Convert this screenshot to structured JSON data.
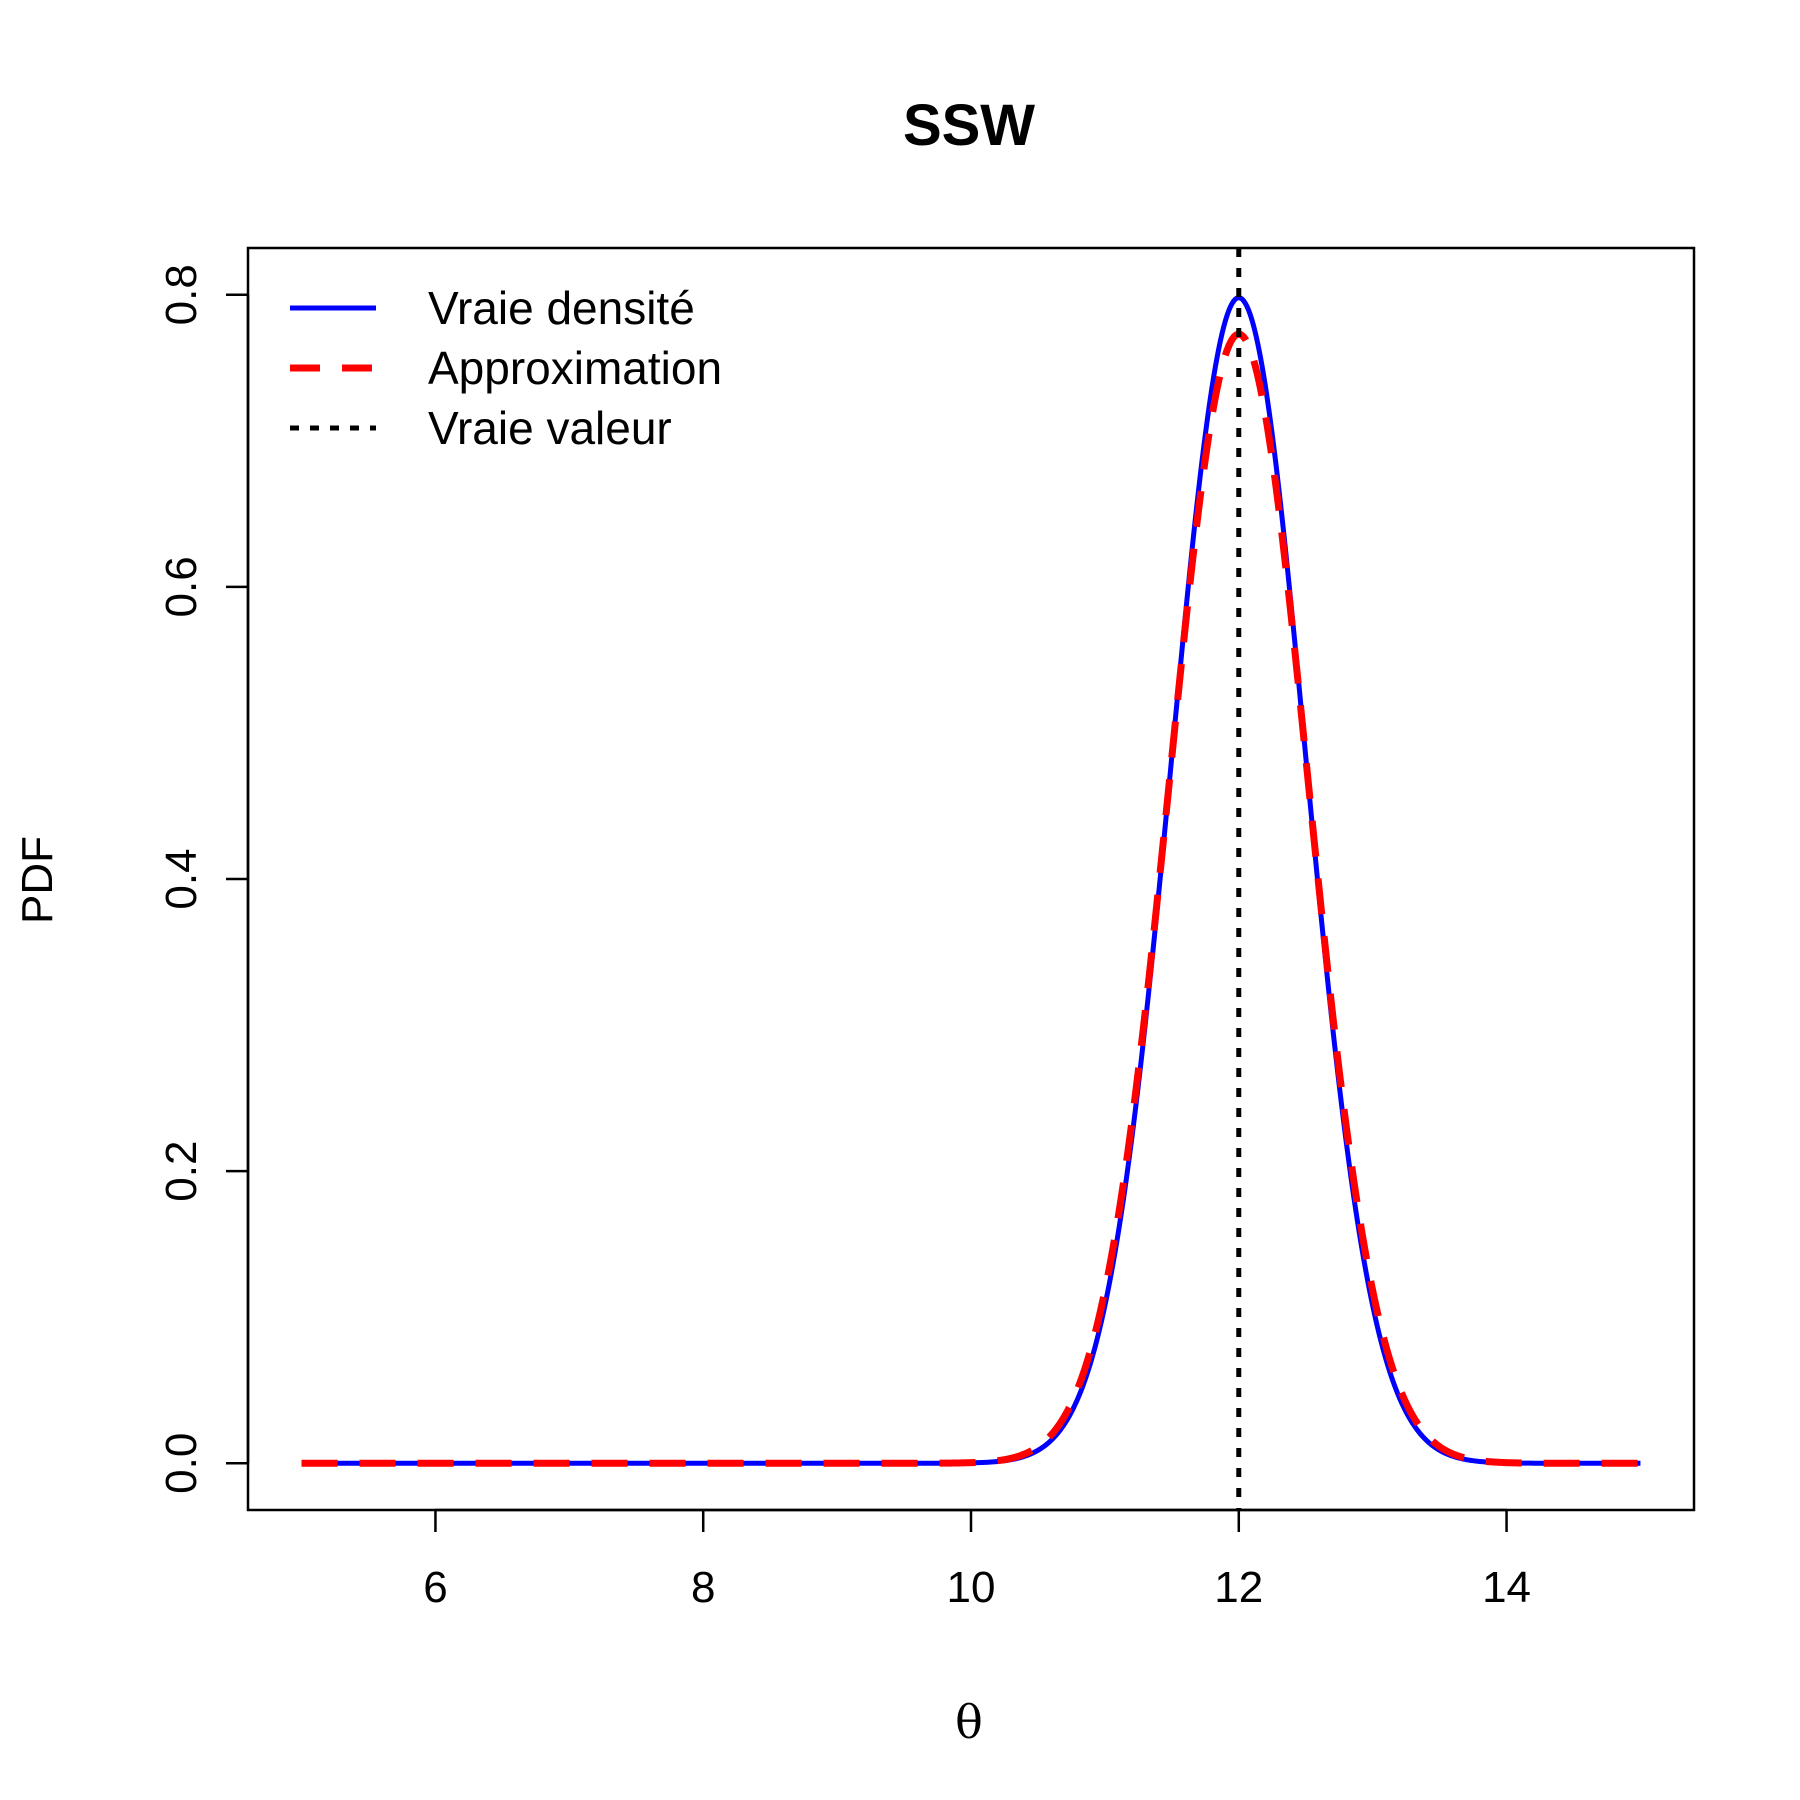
{
  "chart_data": {
    "type": "line",
    "title": "SSW",
    "xlabel": "θ",
    "ylabel": "PDF",
    "xlim": [
      4.6,
      15.4
    ],
    "ylim": [
      -0.032,
      0.832
    ],
    "x_ticks": [
      6,
      8,
      10,
      12,
      14
    ],
    "y_ticks": [
      0.0,
      0.2,
      0.4,
      0.6,
      0.8
    ],
    "x_tick_labels": [
      "6",
      "8",
      "10",
      "12",
      "14"
    ],
    "y_tick_labels": [
      "0.0",
      "0.2",
      "0.4",
      "0.6",
      "0.8"
    ],
    "x_range": [
      5,
      15
    ],
    "legend_position": "top-left",
    "grid": false,
    "series": [
      {
        "name": "Vraie densité",
        "color": "#0000ff",
        "style": "solid",
        "curve": {
          "family": "normal",
          "mean": 12.0,
          "peak": 0.798
        }
      },
      {
        "name": "Approximation",
        "color": "#ff0000",
        "style": "dashed",
        "curve": {
          "family": "normal",
          "mean": 12.0,
          "peak": 0.773
        }
      }
    ],
    "reference_lines": [
      {
        "name": "Vraie valeur",
        "x": 12,
        "color": "#000000",
        "style": "dotted"
      }
    ]
  }
}
